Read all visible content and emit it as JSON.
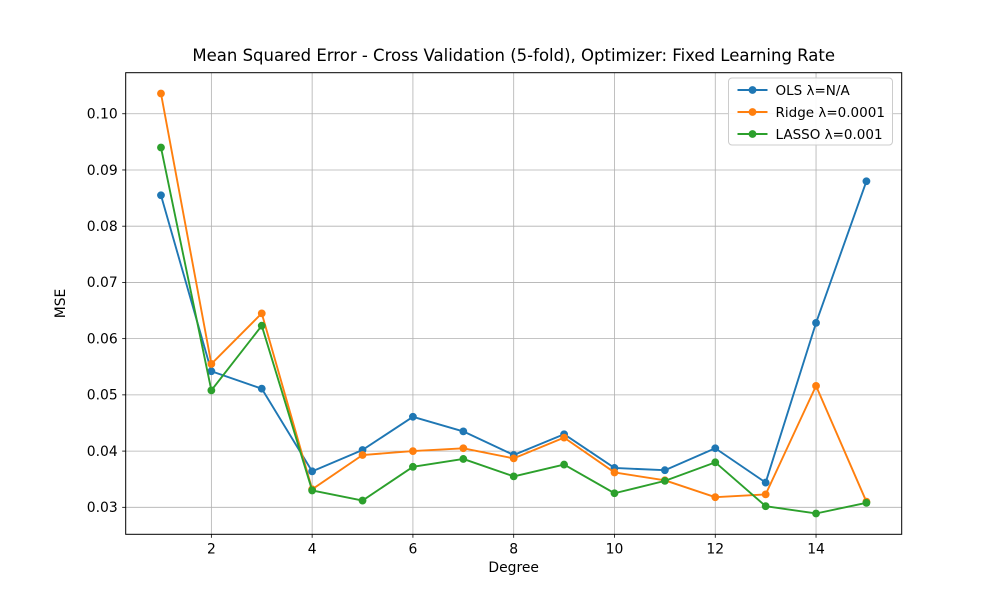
{
  "figure": {
    "background": "#ffffff"
  },
  "chart_data": {
    "type": "line",
    "title": "Mean Squared Error - Cross Validation (5-fold), Optimizer: Fixed Learning Rate",
    "xlabel": "Degree",
    "ylabel": "MSE",
    "xlim": [
      0.3,
      15.7
    ],
    "ylim": [
      0.0252,
      0.1073
    ],
    "xticks": [
      2,
      4,
      6,
      8,
      10,
      12,
      14
    ],
    "xtick_labels": [
      "2",
      "4",
      "6",
      "8",
      "10",
      "12",
      "14"
    ],
    "yticks": [
      0.03,
      0.04,
      0.05,
      0.06,
      0.07,
      0.08,
      0.09,
      0.1
    ],
    "ytick_labels": [
      "0.03",
      "0.04",
      "0.05",
      "0.06",
      "0.07",
      "0.08",
      "0.09",
      "0.10"
    ],
    "grid": true,
    "grid_color": "#b0b0b0",
    "frame_color": "#000000",
    "legend_position": "upper right",
    "legend_border_color": "#cccccc",
    "marker": "circle",
    "x": [
      1,
      2,
      3,
      4,
      5,
      6,
      7,
      8,
      9,
      10,
      11,
      12,
      13,
      14,
      15
    ],
    "series": [
      {
        "name": "OLS λ=N/A",
        "color": "#1f77b4",
        "values": [
          0.0855,
          0.0542,
          0.0511,
          0.0364,
          0.0402,
          0.0461,
          0.0435,
          0.0393,
          0.043,
          0.037,
          0.0366,
          0.0405,
          0.0344,
          0.0628,
          0.088
        ]
      },
      {
        "name": "Ridge λ=0.0001",
        "color": "#ff7f0e",
        "values": [
          0.1036,
          0.0555,
          0.0645,
          0.0332,
          0.0393,
          0.04,
          0.0405,
          0.0387,
          0.0424,
          0.0362,
          0.0348,
          0.0318,
          0.0323,
          0.0516,
          0.031
        ]
      },
      {
        "name": "LASSO λ=0.001",
        "color": "#2ca02c",
        "values": [
          0.094,
          0.0508,
          0.0623,
          0.033,
          0.0312,
          0.0372,
          0.0386,
          0.0355,
          0.0376,
          0.0325,
          0.0347,
          0.038,
          0.0302,
          0.0289,
          0.0308
        ]
      }
    ]
  }
}
